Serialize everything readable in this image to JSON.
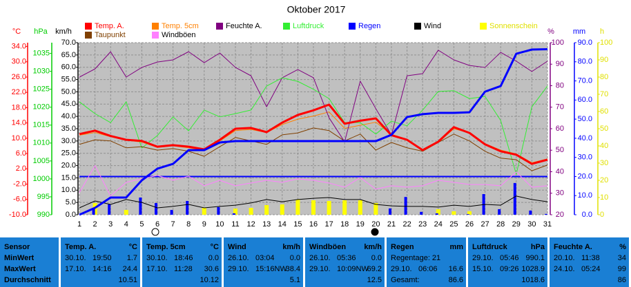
{
  "chart_data": {
    "type": "line",
    "title": "Oktober 2017",
    "grid": true,
    "x": [
      1,
      2,
      3,
      4,
      5,
      6,
      7,
      8,
      9,
      10,
      11,
      12,
      13,
      14,
      15,
      16,
      17,
      18,
      19,
      20,
      21,
      22,
      23,
      24,
      25,
      26,
      27,
      28,
      29,
      30,
      31
    ],
    "xlim": [
      1,
      31
    ],
    "xticks": [
      1,
      2,
      3,
      4,
      5,
      6,
      7,
      8,
      9,
      10,
      11,
      12,
      13,
      14,
      15,
      16,
      17,
      18,
      19,
      20,
      21,
      22,
      23,
      24,
      25,
      26,
      27,
      28,
      29,
      30,
      31
    ],
    "ylabel": "°C",
    "ycolor": "#ff0000",
    "ylim": [
      -10,
      35
    ],
    "yticks": [
      {
        "value": -10,
        "label": "-10.0"
      },
      {
        "value": -6,
        "label": "-6.0"
      },
      {
        "value": -2,
        "label": "-2.0"
      },
      {
        "value": 2,
        "label": "2.0"
      },
      {
        "value": 6,
        "label": "6.0"
      },
      {
        "value": 10,
        "label": "10.0"
      },
      {
        "value": 14,
        "label": "14.0"
      },
      {
        "value": 18,
        "label": "18.0"
      },
      {
        "value": 22,
        "label": "22.0"
      },
      {
        "value": 26,
        "label": "26.0"
      },
      {
        "value": 30,
        "label": "30.0"
      },
      {
        "value": 34,
        "label": "34.0"
      }
    ],
    "y2label": "hPa",
    "y2color": "#00cc00",
    "y2lim": [
      990,
      1038
    ],
    "y2ticks": [
      990,
      995,
      1000,
      1005,
      1010,
      1015,
      1020,
      1025,
      1030,
      1035
    ],
    "y3label": "km/h",
    "y3color": "#000000",
    "y3lim": [
      0,
      70
    ],
    "y3ticks": [
      {
        "value": 0,
        "label": "0.0"
      },
      {
        "value": 5,
        "label": "5.0"
      },
      {
        "value": 10,
        "label": "10.0"
      },
      {
        "value": 15,
        "label": "15.0"
      },
      {
        "value": 20,
        "label": "20.0"
      },
      {
        "value": 25,
        "label": "25.0"
      },
      {
        "value": 30,
        "label": "30.0"
      },
      {
        "value": 35,
        "label": "35.0"
      },
      {
        "value": 40,
        "label": "40.0"
      },
      {
        "value": 45,
        "label": "45.0"
      },
      {
        "value": 50,
        "label": "50.0"
      },
      {
        "value": 55,
        "label": "55.0"
      },
      {
        "value": 60,
        "label": "60.0"
      },
      {
        "value": 65,
        "label": "65.0"
      },
      {
        "value": 70,
        "label": "70.0"
      }
    ],
    "y4label": "%",
    "y4color": "#800080",
    "y4lim": [
      20,
      100
    ],
    "y4ticks": [
      20,
      30,
      40,
      50,
      60,
      70,
      80,
      90,
      100
    ],
    "y5label": "mm",
    "y5color": "#0000ff",
    "y5lim": [
      0,
      90
    ],
    "y5ticks": [
      {
        "value": 0,
        "label": "0.0"
      },
      {
        "value": 10,
        "label": "10.0"
      },
      {
        "value": 20,
        "label": "20.0"
      },
      {
        "value": 30,
        "label": "30.0"
      },
      {
        "value": 40,
        "label": "40.0"
      },
      {
        "value": 50,
        "label": "50.0"
      },
      {
        "value": 60,
        "label": "60.0"
      },
      {
        "value": 70,
        "label": "70.0"
      },
      {
        "value": 80,
        "label": "80.0"
      },
      {
        "value": 90,
        "label": "90.0"
      }
    ],
    "y6label": "h",
    "y6color": "#e0e000",
    "y6lim": [
      0,
      100
    ],
    "y6ticks": [
      0,
      10,
      20,
      30,
      40,
      50,
      60,
      70,
      80,
      90,
      100
    ],
    "series": [
      {
        "name": "Temp. A.",
        "color": "#ff0000",
        "axis": "y",
        "line_width": 3,
        "values": [
          11.1,
          12.0,
          10.6,
          9.6,
          9.3,
          7.8,
          8.2,
          7.8,
          7.1,
          9.6,
          12.5,
          12.7,
          11.6,
          14.1,
          16.1,
          17.3,
          18.8,
          13.8,
          14.6,
          15.2,
          10.8,
          9.6,
          6.9,
          9.1,
          12.9,
          11.4,
          8.4,
          6.6,
          5.7,
          3.3,
          4.4
        ]
      },
      {
        "name": "Temp. 5cm",
        "color": "#ff8000",
        "axis": "y",
        "line_width": 1,
        "values": [
          10.8,
          11.5,
          10.4,
          9.5,
          9.0,
          7.6,
          8.0,
          7.5,
          6.8,
          9.3,
          12.0,
          12.3,
          11.5,
          13.6,
          15.0,
          15.8,
          16.9,
          12.6,
          13.4,
          14.2,
          11.0,
          9.6,
          7.0,
          8.9,
          12.5,
          11.4,
          8.6,
          6.9,
          5.9,
          3.6,
          4.6
        ]
      },
      {
        "name": "Feuchte A.",
        "color": "#800080",
        "axis": "y4",
        "line_width": 1,
        "values": [
          84,
          87.8,
          95.8,
          84,
          88.5,
          91,
          92,
          95.8,
          90.7,
          95.2,
          88.5,
          84.6,
          70.2,
          83.7,
          87.5,
          83.7,
          65.1,
          53.9,
          82.1,
          69.3,
          57.1,
          84.6,
          85.6,
          96.5,
          92,
          89.4,
          88.5,
          95.5,
          91.4,
          86.6,
          91.4
        ]
      },
      {
        "name": "Luftdruck",
        "color": "#33ee33",
        "axis": "y2",
        "line_width": 1,
        "values": [
          1021.5,
          1018.2,
          1015.7,
          1021.5,
          1008.6,
          1012.1,
          1017.3,
          1013.4,
          1019.2,
          1017.3,
          1018.2,
          1019.2,
          1025.9,
          1028.2,
          1027.2,
          1025.0,
          1022.4,
          1015.7,
          1015.7,
          1012.5,
          1016.1,
          1014.8,
          1019.2,
          1024.4,
          1024.6,
          1022.4,
          1023.0,
          1016.3,
          1001.3,
          1020.1,
          1025.9
        ]
      },
      {
        "name": "Regen",
        "color": "#0000ff",
        "axis": "y5",
        "line_width": 3,
        "values": [
          0,
          3.6,
          9,
          9,
          18,
          24.1,
          26.6,
          33.8,
          33.8,
          37.8,
          38.5,
          38.5,
          38.5,
          38.5,
          38.5,
          38.5,
          38.5,
          38.5,
          38.5,
          38.5,
          41.8,
          51.1,
          52.6,
          53.3,
          53.3,
          53.6,
          64.4,
          67.3,
          84.2,
          86.4,
          86.6
        ]
      },
      {
        "name": "Wind",
        "color": "#000000",
        "axis": "y3",
        "line_width": 1,
        "values": [
          2.8,
          5.6,
          4.2,
          6.2,
          5.0,
          2.8,
          3.4,
          4.2,
          2.8,
          3.4,
          3.9,
          4.8,
          6.2,
          5.3,
          6.2,
          6.7,
          7.0,
          6.2,
          6.2,
          4.2,
          3.6,
          3.4,
          3.4,
          3.1,
          3.9,
          3.4,
          4.2,
          3.9,
          7.6,
          6.2,
          5.3
        ]
      },
      {
        "name": "Sonnenschein",
        "color": "#ffff00",
        "axis": "y6",
        "type": "bar",
        "values": [
          0,
          6.8,
          0,
          2.8,
          0,
          0,
          0,
          0,
          4,
          0,
          3.6,
          4,
          5.6,
          6,
          8.8,
          8.4,
          8,
          8.4,
          8.4,
          6.8,
          0,
          0,
          0,
          3.2,
          2,
          2,
          0,
          0,
          0,
          0,
          0
        ]
      },
      {
        "name": "Taupunkt",
        "color": "#804000",
        "axis": "y",
        "line_width": 1,
        "values": [
          8.4,
          9.6,
          9.3,
          7.5,
          7.8,
          6.9,
          7.3,
          6.6,
          5.3,
          7.8,
          10.2,
          9.3,
          8.4,
          10.9,
          11.4,
          12.7,
          12.0,
          9.3,
          11.1,
          6.9,
          8.9,
          7.5,
          6.6,
          8.9,
          11.1,
          9.3,
          6.6,
          4.8,
          4.4,
          1.5,
          3.0
        ]
      },
      {
        "name": "Windböen",
        "color": "#ff80ff",
        "axis": "y3",
        "line_width": 1,
        "values": [
          9,
          20,
          7.6,
          13.2,
          14.6,
          16,
          14,
          15.7,
          11.8,
          14,
          11.8,
          12.9,
          14,
          13.2,
          14.6,
          14,
          12.9,
          11.2,
          15.1,
          10.4,
          11.8,
          11.2,
          11.8,
          14,
          13.2,
          12.3,
          12.3,
          11.8,
          17.4,
          11.2,
          11.8
        ]
      },
      {
        "color": "#0000ff",
        "axis": "y5",
        "type": "bar",
        "values": [
          0,
          3.6,
          5.4,
          0,
          9,
          6.1,
          2.5,
          7.2,
          0,
          4,
          0.7,
          0,
          0,
          0,
          0,
          0,
          0,
          0,
          0,
          0,
          3.3,
          9.3,
          1.5,
          0.7,
          0,
          0.3,
          10.8,
          2.9,
          16.6,
          2.2,
          0.4
        ]
      }
    ]
  },
  "table": {
    "row_labels": [
      "Sensor",
      "MinWert",
      "MaxWert",
      "Durchschnitt"
    ],
    "columns": [
      {
        "title": "Temp. A.",
        "unit": "°C",
        "min": [
          "30.10.",
          "19:50",
          "1.7"
        ],
        "max": [
          "17.10.",
          "14:16",
          "24.4"
        ],
        "avg": [
          "10.51"
        ]
      },
      {
        "title": "Temp. 5cm",
        "unit": "°C",
        "min": [
          "30.10.",
          "18:46",
          "0.0"
        ],
        "max": [
          "17.10.",
          "11:28",
          "30.6"
        ],
        "avg": [
          "10.12"
        ]
      },
      {
        "title": "Wind",
        "unit": "km/h",
        "min": [
          "26.10.",
          "03:04",
          "0.0"
        ],
        "max": [
          "29.10.",
          "15:16NW",
          "38.4"
        ],
        "avg": [
          "5.1"
        ]
      },
      {
        "title": "Windböen",
        "unit": "km/h",
        "min": [
          "26.10.",
          "05:36",
          "0.0"
        ],
        "max": [
          "29.10.",
          "10:09NW",
          "69.2"
        ],
        "avg": [
          "12.5"
        ]
      },
      {
        "title": "Regen",
        "unit": "mm",
        "min": [
          "Regentage: 21"
        ],
        "max": [
          "29.10.",
          "06:06",
          "16.6"
        ],
        "avg": [
          "Gesamt:",
          "86.6"
        ]
      },
      {
        "title": "Luftdruck",
        "unit": "hPa",
        "min": [
          "29.10.",
          "05:46",
          "990.1"
        ],
        "max": [
          "15.10.",
          "09:26",
          "1028.9"
        ],
        "avg": [
          "1018.6"
        ]
      },
      {
        "title": "Feuchte A.",
        "unit": "%",
        "min": [
          "20.10.",
          "11:38",
          "34"
        ],
        "max": [
          "24.10.",
          "05:24",
          "99"
        ],
        "avg": [
          "86"
        ]
      }
    ]
  }
}
